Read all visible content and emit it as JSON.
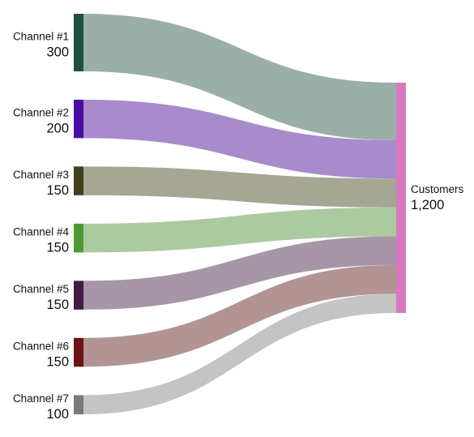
{
  "chart_data": {
    "type": "sankey",
    "sources": [
      {
        "name": "Channel #1",
        "value_label": "300",
        "value": 300,
        "node_color": "#1f4f3f",
        "link_color": "#9aafa8"
      },
      {
        "name": "Channel #2",
        "value_label": "200",
        "value": 200,
        "node_color": "#4b0aa3",
        "link_color": "#a78bcb"
      },
      {
        "name": "Channel #3",
        "value_label": "150",
        "value": 150,
        "node_color": "#423f1c",
        "link_color": "#a6a694"
      },
      {
        "name": "Channel #4",
        "value_label": "150",
        "value": 150,
        "node_color": "#4f9a2f",
        "link_color": "#acca9f"
      },
      {
        "name": "Channel #5",
        "value_label": "150",
        "value": 150,
        "node_color": "#421a43",
        "link_color": "#a696a8"
      },
      {
        "name": "Channel #6",
        "value_label": "150",
        "value": 150,
        "node_color": "#6b1418",
        "link_color": "#b29494"
      },
      {
        "name": "Channel #7",
        "value_label": "100",
        "value": 100,
        "node_color": "#7a7a7a",
        "link_color": "#c4c4c4"
      }
    ],
    "target": {
      "name": "Customers",
      "value_label": "1,200",
      "value": 1200,
      "node_color": "#d879c0"
    }
  }
}
